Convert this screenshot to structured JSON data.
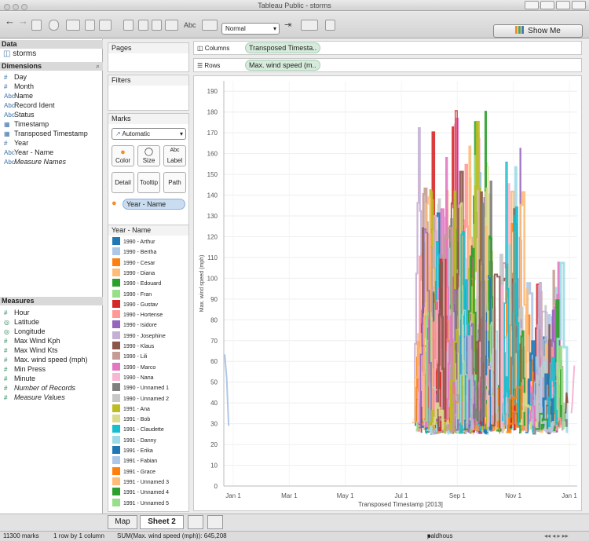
{
  "window": {
    "title": "Tableau Public - storms"
  },
  "toolbar": {
    "abc_label": "Abc",
    "fit_dropdown": "Normal",
    "show_me": "Show Me"
  },
  "data_pane": {
    "header": "Data",
    "datasource": "storms",
    "dimensions_header": "Dimensions",
    "dimensions": [
      {
        "icon": "#",
        "label": "Day",
        "italic": false
      },
      {
        "icon": "#",
        "label": "Month",
        "italic": false
      },
      {
        "icon": "Abc",
        "label": "Name",
        "italic": false
      },
      {
        "icon": "Abc",
        "label": "Record Ident",
        "italic": false
      },
      {
        "icon": "Abc",
        "label": "Status",
        "italic": false
      },
      {
        "icon": "date",
        "label": "Timestamp",
        "italic": false
      },
      {
        "icon": "date",
        "label": "Transposed Timestamp",
        "italic": false
      },
      {
        "icon": "#",
        "label": "Year",
        "italic": false
      },
      {
        "icon": "Abc",
        "label": "Year - Name",
        "italic": false
      },
      {
        "icon": "Abc",
        "label": "Measure Names",
        "italic": true
      }
    ],
    "measures_header": "Measures",
    "measures": [
      {
        "icon": "#",
        "label": "Hour",
        "italic": false
      },
      {
        "icon": "globe",
        "label": "Latitude",
        "italic": false
      },
      {
        "icon": "globe",
        "label": "Longitude",
        "italic": false
      },
      {
        "icon": "#",
        "label": "Max Wind Kph",
        "italic": false
      },
      {
        "icon": "#",
        "label": "Max Wind Kts",
        "italic": false
      },
      {
        "icon": "#",
        "label": "Max. wind speed (mph)",
        "italic": false
      },
      {
        "icon": "#",
        "label": "Min Press",
        "italic": false
      },
      {
        "icon": "#",
        "label": "Minute",
        "italic": false
      },
      {
        "icon": "#",
        "label": "Number of Records",
        "italic": true
      },
      {
        "icon": "#",
        "label": "Measure Values",
        "italic": true
      }
    ]
  },
  "pages": {
    "label": "Pages"
  },
  "filters": {
    "label": "Filters"
  },
  "marks": {
    "label": "Marks",
    "type": "Automatic",
    "buttons": [
      "Color",
      "Size",
      "Label",
      "Detail",
      "Tooltip",
      "Path"
    ],
    "color_pill": "Year - Name"
  },
  "legend": {
    "title": "Year - Name",
    "items": [
      {
        "label": "1990 - Arthur",
        "color": "#1f77b4"
      },
      {
        "label": "1990 - Bertha",
        "color": "#aec7e8"
      },
      {
        "label": "1990 - Cesar",
        "color": "#ff7f0e"
      },
      {
        "label": "1990 - Diana",
        "color": "#ffbb78"
      },
      {
        "label": "1990 - Edouard",
        "color": "#2ca02c"
      },
      {
        "label": "1990 - Fran",
        "color": "#98df8a"
      },
      {
        "label": "1990 - Gustav",
        "color": "#d62728"
      },
      {
        "label": "1990 - Hortense",
        "color": "#ff9896"
      },
      {
        "label": "1990 - Isidore",
        "color": "#9467bd"
      },
      {
        "label": "1990 - Josephine",
        "color": "#c5b0d5"
      },
      {
        "label": "1990 - Klaus",
        "color": "#8c564b"
      },
      {
        "label": "1990 - Lili",
        "color": "#c49c94"
      },
      {
        "label": "1990 - Marco",
        "color": "#e377c2"
      },
      {
        "label": "1990 - Nana",
        "color": "#f7b6d2"
      },
      {
        "label": "1990 - Unnamed 1",
        "color": "#7f7f7f"
      },
      {
        "label": "1990 - Unnamed 2",
        "color": "#c7c7c7"
      },
      {
        "label": "1991 - Ana",
        "color": "#bcbd22"
      },
      {
        "label": "1991 - Bob",
        "color": "#dbdb8d"
      },
      {
        "label": "1991 - Claudette",
        "color": "#17becf"
      },
      {
        "label": "1991 - Danny",
        "color": "#9edae5"
      },
      {
        "label": "1991 - Erika",
        "color": "#1f77b4"
      },
      {
        "label": "1991 - Fabian",
        "color": "#aec7e8"
      },
      {
        "label": "1991 - Grace",
        "color": "#ff7f0e"
      },
      {
        "label": "1991 - Unnamed 3",
        "color": "#ffbb78"
      },
      {
        "label": "1991 - Unnamed 4",
        "color": "#2ca02c"
      },
      {
        "label": "1991 - Unnamed 5",
        "color": "#98df8a"
      }
    ]
  },
  "shelves": {
    "columns_label": "Columns",
    "columns_pill": "Transposed Timesta..",
    "rows_label": "Rows",
    "rows_pill": "Max. wind speed (m.."
  },
  "chart_data": {
    "type": "line",
    "title": "",
    "xlabel": "Transposed Timestamp [2013]",
    "ylabel": "Max. wind speed (mph)",
    "xticks": [
      "Jan 1",
      "Mar 1",
      "May 1",
      "Jul 1",
      "Sep 1",
      "Nov 1",
      "Jan 1"
    ],
    "yticks": [
      0,
      10,
      20,
      30,
      40,
      50,
      60,
      70,
      80,
      90,
      100,
      110,
      120,
      130,
      140,
      150,
      160,
      170,
      180,
      190
    ],
    "ylim": [
      0,
      195
    ],
    "x_domain": [
      "2013-01-01",
      "2014-01-01"
    ],
    "grid": true,
    "legend": "left panel (Year - Name)",
    "series_shown": [
      {
        "name": "1990 - Bertha",
        "x": [
          "2013-01-01",
          "2013-01-02",
          "2013-01-03",
          "2013-01-04",
          "2013-01-05",
          "2013-01-06"
        ],
        "y": [
          63,
          63,
          57,
          52,
          40,
          29
        ]
      },
      {
        "name": "1990 - Nana",
        "x": [
          "2013-12-26",
          "2013-12-27",
          "2013-12-28",
          "2013-12-29"
        ],
        "y": [
          35,
          40,
          50,
          58
        ]
      },
      {
        "name": "1990 - Klaus",
        "x": [
          "2013-12-20",
          "2013-12-21",
          "2013-12-22"
        ],
        "y": [
          35,
          45,
          40
        ]
      }
    ],
    "note_color_range": [
      "#1f77b4",
      "#aec7e8",
      "#ff7f0e",
      "#ffbb78",
      "#2ca02c",
      "#98df8a",
      "#d62728",
      "#ff9896",
      "#9467bd",
      "#c5b0d5",
      "#8c564b",
      "#c49c94",
      "#e377c2",
      "#f7b6d2",
      "#7f7f7f",
      "#c7c7c7",
      "#bcbd22",
      "#dbdb8d",
      "#17becf",
      "#9edae5"
    ]
  },
  "tabs": [
    {
      "label": "Map",
      "active": false
    },
    {
      "label": "Sheet 2",
      "active": true
    }
  ],
  "status": {
    "marks": "11300 marks",
    "rows_cols": "1 row by 1 column",
    "sum": "SUM(Max. wind speed (mph)): 645,208",
    "user": "paldhous"
  }
}
